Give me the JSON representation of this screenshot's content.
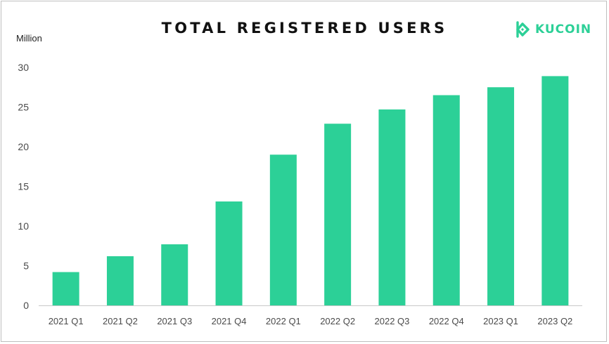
{
  "logo": {
    "name": "KUCOIN",
    "icon": "kucoin-logo-icon",
    "color": "#2cd097"
  },
  "chart_data": {
    "type": "bar",
    "title": "TOTAL REGISTERED USERS",
    "ylabel": "Million",
    "xlabel": "",
    "categories": [
      "2021 Q1",
      "2021 Q2",
      "2021 Q3",
      "2021 Q4",
      "2022 Q1",
      "2022 Q2",
      "2022 Q3",
      "2022 Q4",
      "2023 Q1",
      "2023 Q2"
    ],
    "values": [
      4.2,
      6.2,
      7.7,
      13.1,
      19.0,
      22.9,
      24.7,
      26.5,
      27.5,
      28.9
    ],
    "ylim": [
      0,
      30
    ],
    "yticks": [
      "0",
      "5",
      "10",
      "15",
      "20",
      "25",
      "30"
    ],
    "grid": false,
    "legend": "none",
    "bar_color": "#2cd097"
  }
}
